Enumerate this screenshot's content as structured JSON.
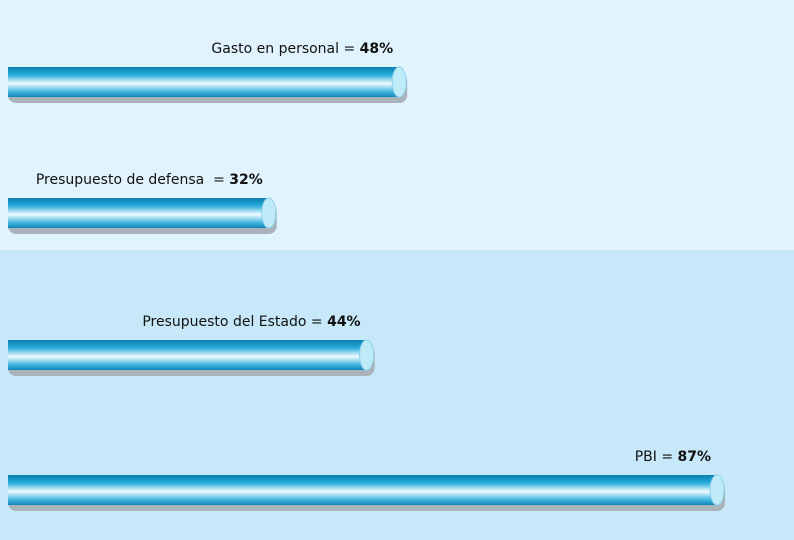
{
  "chart_data": {
    "type": "bar",
    "categories": [
      "Gasto en personal =",
      "Presupuesto de defensa  =",
      "Presupuesto del Estado =",
      "PBI ="
    ],
    "values": [
      48,
      32,
      44,
      87
    ],
    "value_labels": [
      "48%",
      "32%",
      "44%",
      "87%"
    ],
    "color": "#1a9bd0",
    "xlim": [
      0,
      100
    ]
  }
}
